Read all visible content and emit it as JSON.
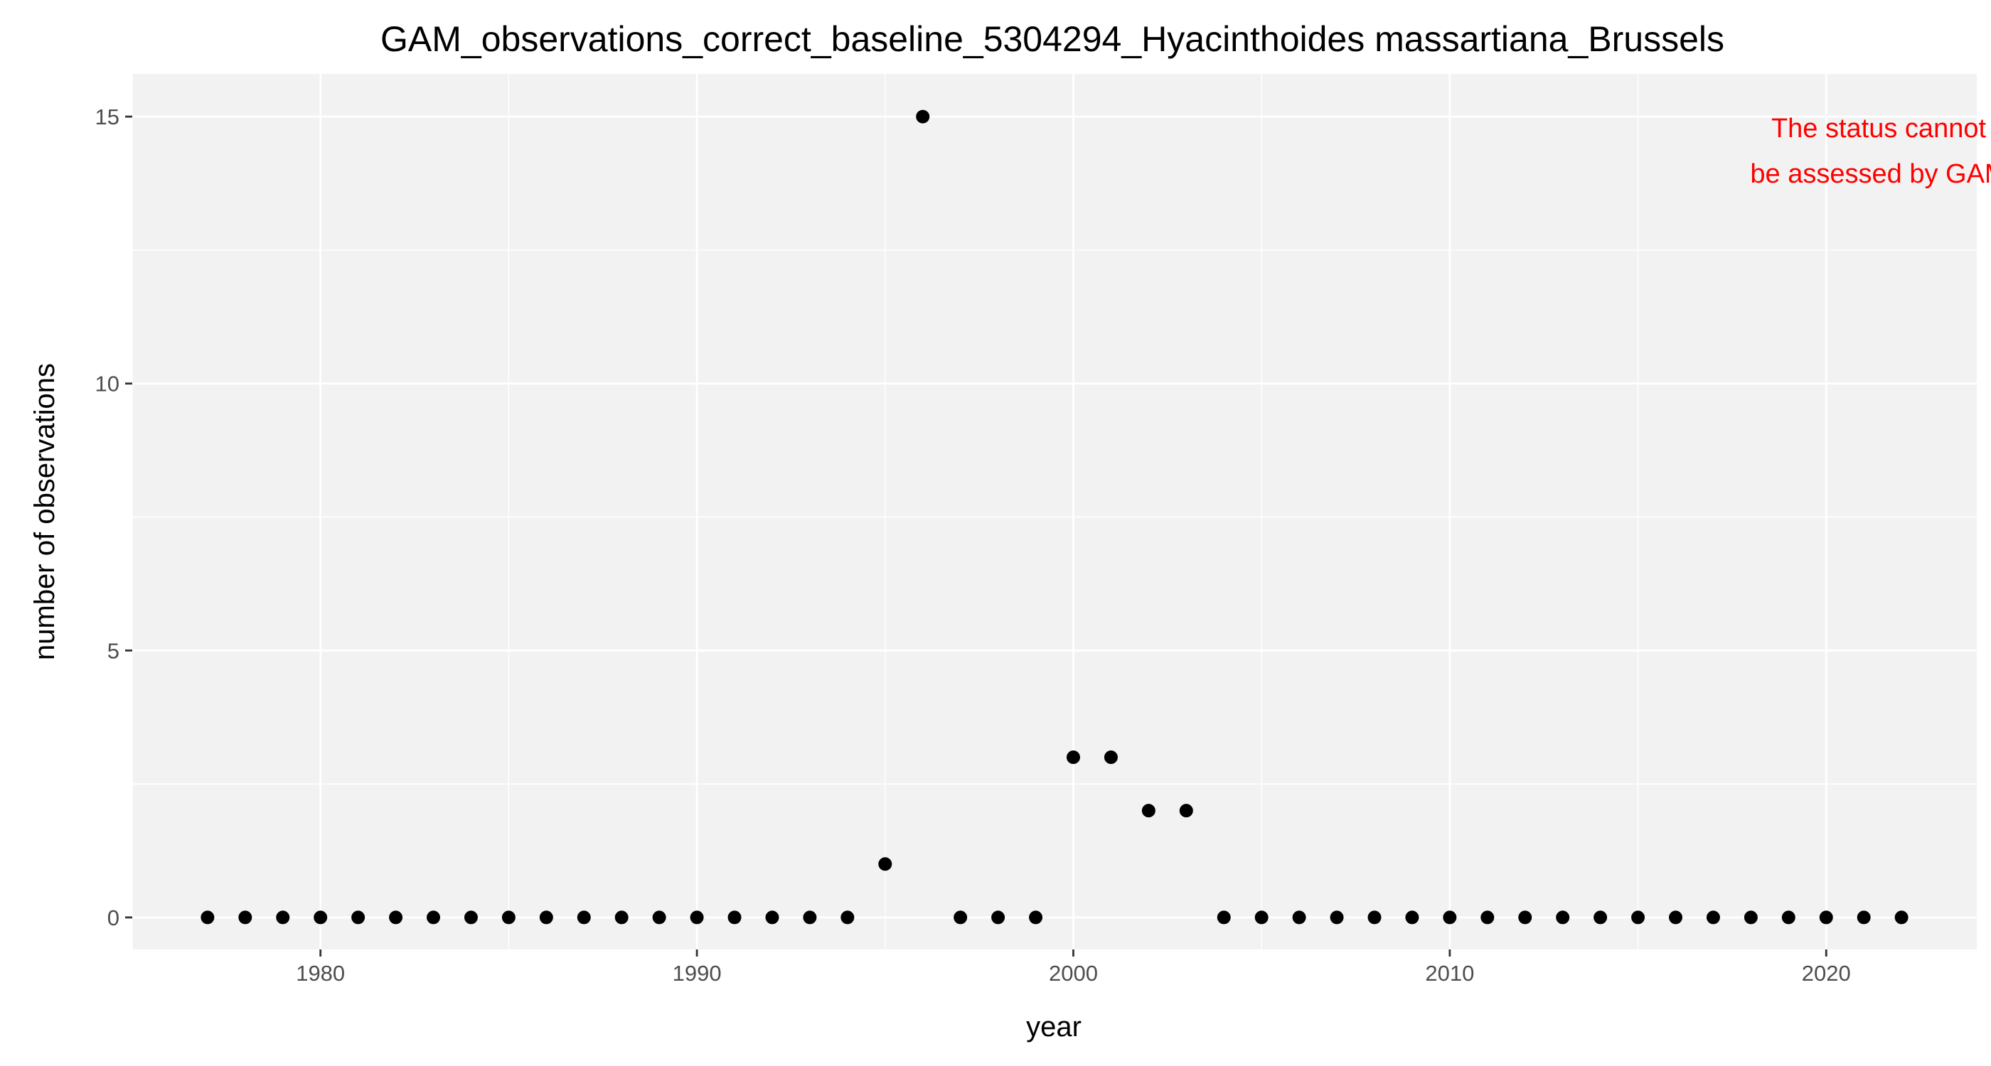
{
  "chart_data": {
    "type": "scatter",
    "title": "GAM_observations_correct_baseline_5304294_Hyacinthoides massartiana_Brussels",
    "xlabel": "year",
    "ylabel": "number of observations",
    "xlim": [
      1975,
      2024
    ],
    "ylim": [
      -0.6,
      15.8
    ],
    "x_ticks": [
      1980,
      1990,
      2000,
      2010,
      2020
    ],
    "y_ticks": [
      0,
      5,
      10,
      15
    ],
    "x_tick_labels": [
      "1980",
      "1990",
      "2000",
      "2010",
      "2020"
    ],
    "y_tick_labels": [
      "0",
      "5",
      "10",
      "15"
    ],
    "grid": true,
    "legend": "none",
    "annotation": {
      "lines": [
        "The status cannot",
        "be assessed by GAM"
      ],
      "color": "#ff0000",
      "placement": "top-right"
    },
    "point_color": "#000000",
    "panel_color": "#f2f2f2",
    "x": [
      1977,
      1978,
      1979,
      1980,
      1981,
      1982,
      1983,
      1984,
      1985,
      1986,
      1987,
      1988,
      1989,
      1990,
      1991,
      1992,
      1993,
      1994,
      1995,
      1996,
      1997,
      1998,
      1999,
      2000,
      2001,
      2002,
      2003,
      2004,
      2005,
      2006,
      2007,
      2008,
      2009,
      2010,
      2011,
      2012,
      2013,
      2014,
      2015,
      2016,
      2017,
      2018,
      2019,
      2020,
      2021,
      2022
    ],
    "y": [
      0,
      0,
      0,
      0,
      0,
      0,
      0,
      0,
      0,
      0,
      0,
      0,
      0,
      0,
      0,
      0,
      0,
      0,
      1,
      15,
      0,
      0,
      0,
      3,
      3,
      2,
      2,
      0,
      0,
      0,
      0,
      0,
      0,
      0,
      0,
      0,
      0,
      0,
      0,
      0,
      0,
      0,
      0,
      0,
      0,
      0
    ]
  }
}
